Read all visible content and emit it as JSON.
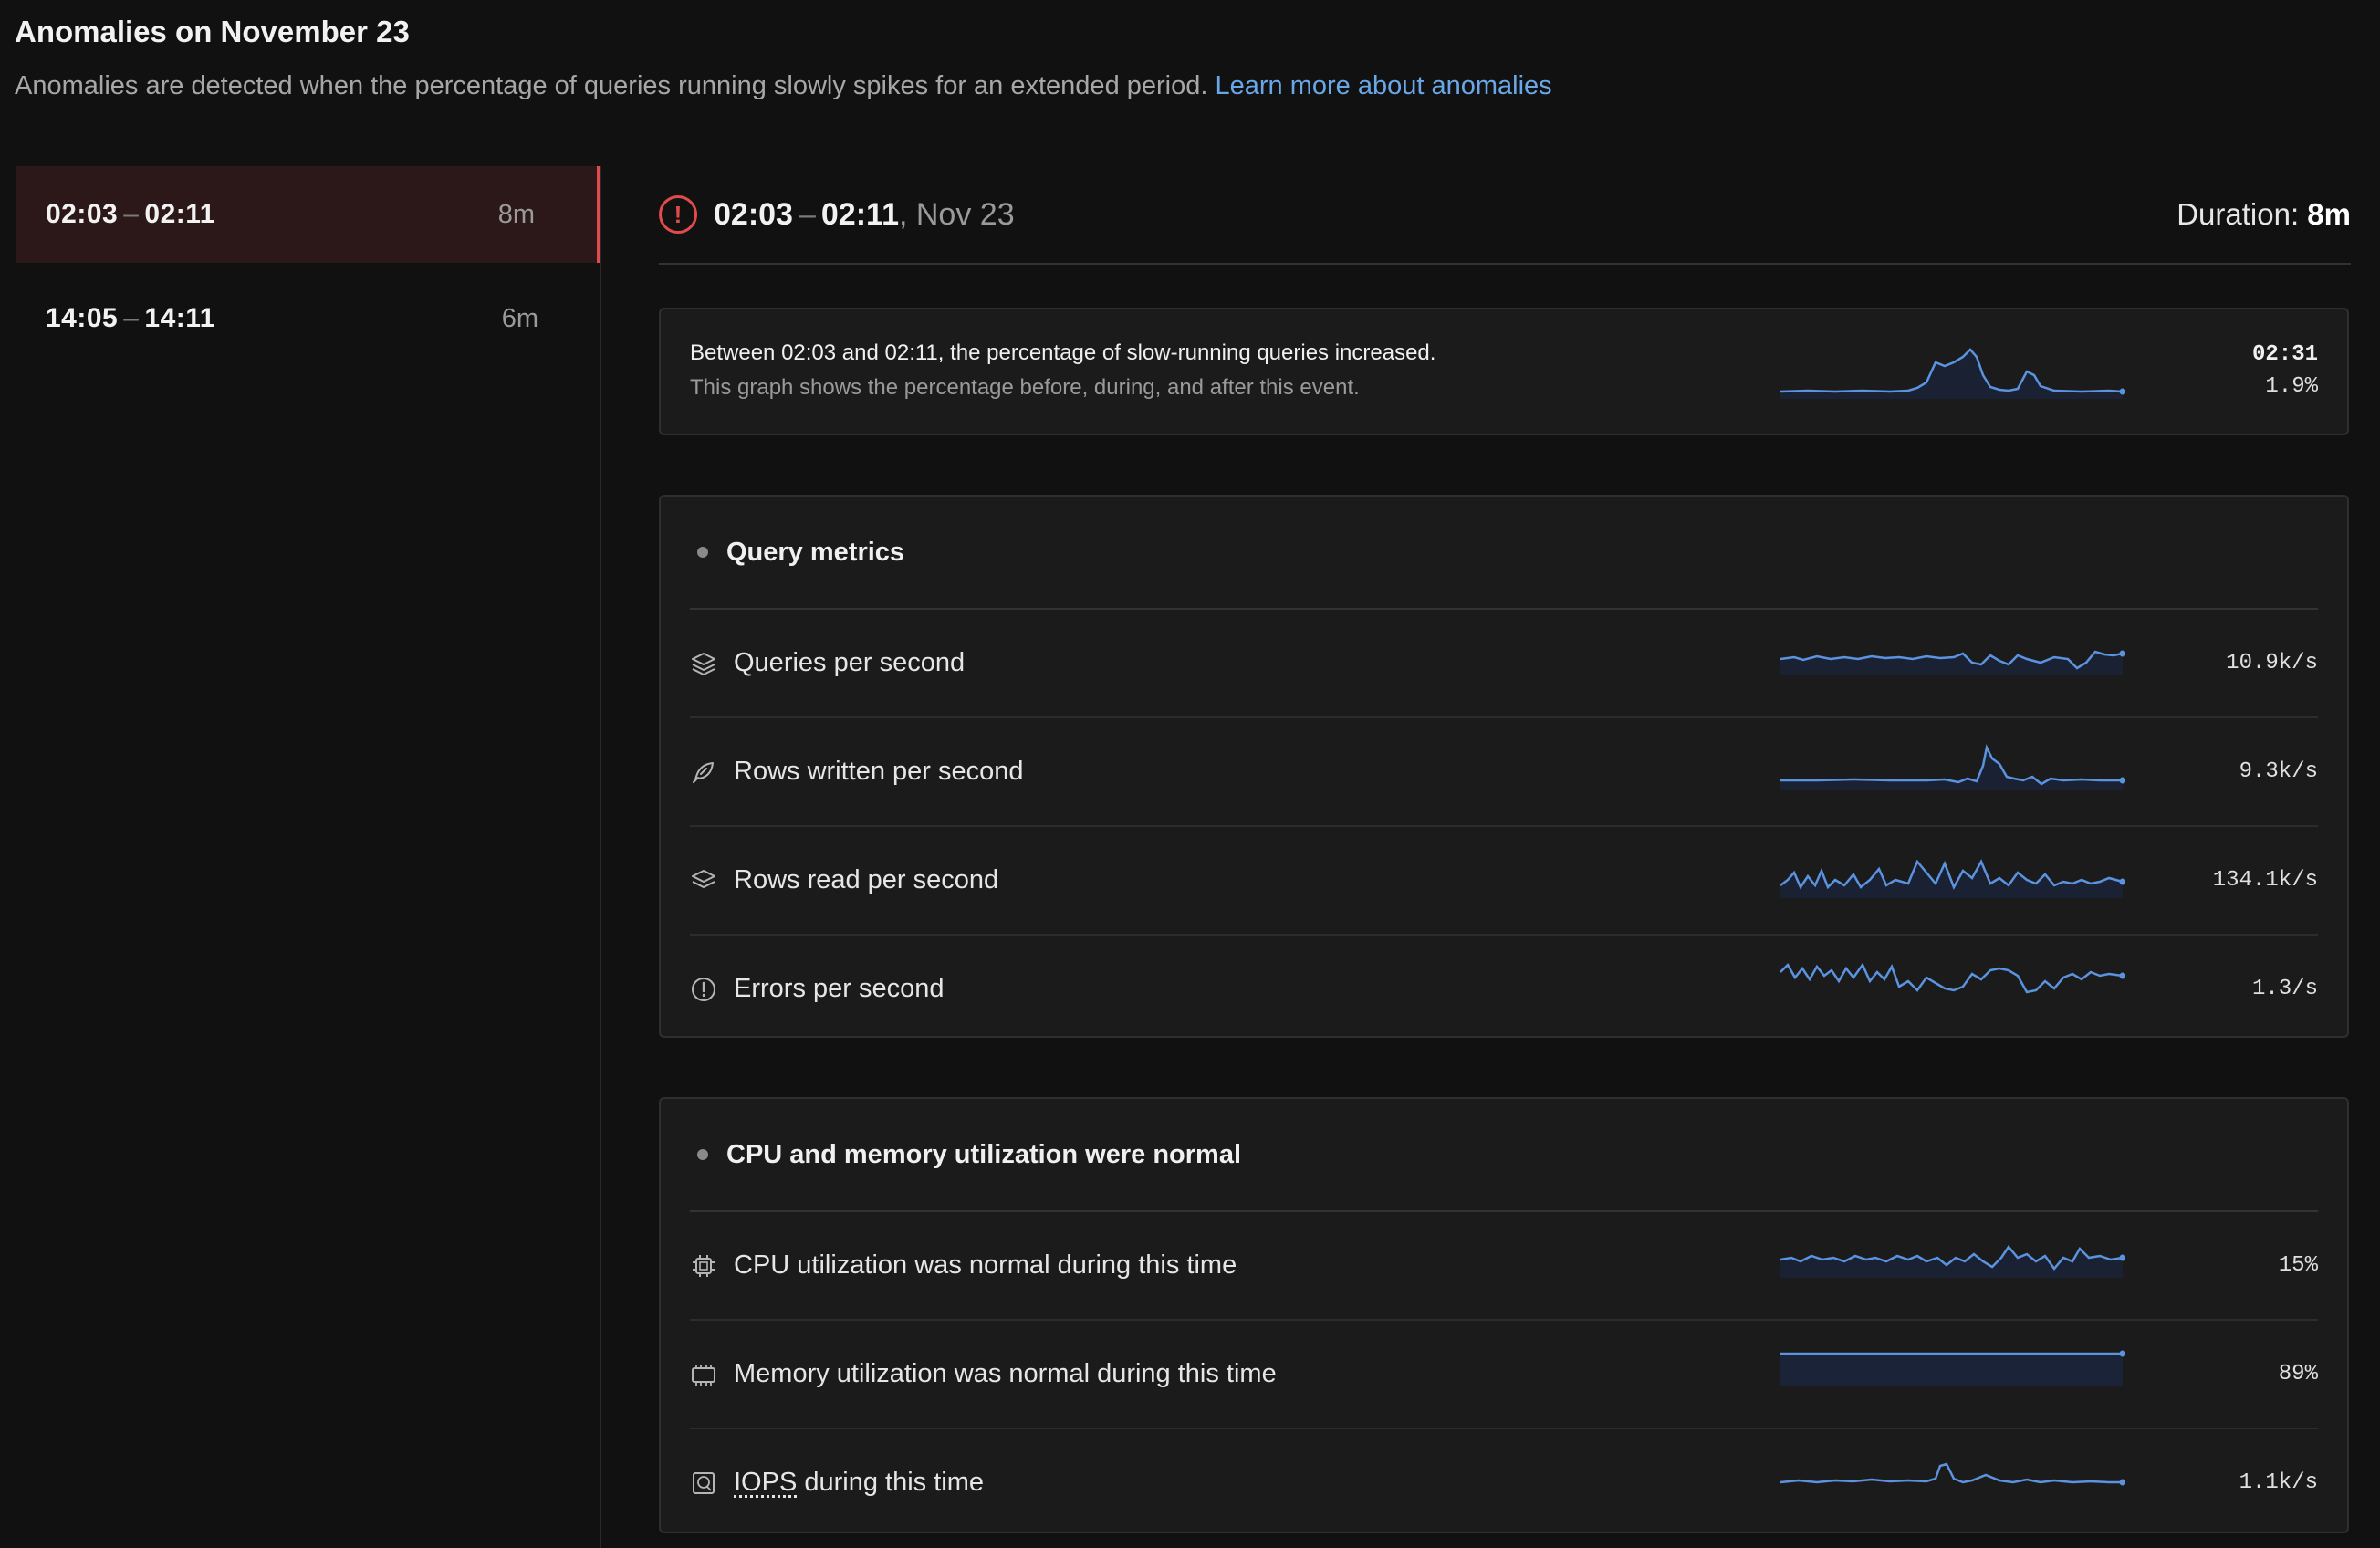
{
  "page": {
    "title": "Anomalies on November 23",
    "description": "Anomalies are detected when the percentage of queries running slowly spikes for an extended period.",
    "learn_more": "Learn more about anomalies"
  },
  "sidebar": {
    "items": [
      {
        "start": "02:03",
        "sep": "–",
        "end": "02:11",
        "duration": "8m",
        "active": true
      },
      {
        "start": "14:05",
        "sep": "–",
        "end": "14:11",
        "duration": "6m",
        "active": false
      }
    ]
  },
  "event": {
    "start": "02:03",
    "sep": "–",
    "end": "02:11",
    "date": ", Nov 23",
    "duration_label": "Duration:",
    "duration_value": "8m",
    "summary_title": "Between 02:03 and 02:11, the percentage of slow-running queries increased.",
    "summary_desc": "This graph shows the percentage before, during, and after this event.",
    "summary_time": "02:31",
    "summary_value": "1.9%"
  },
  "query_metrics": {
    "title": "Query metrics",
    "rows": [
      {
        "label": "Queries per second",
        "value": "10.9k/s",
        "icon": "layers-icon"
      },
      {
        "label": "Rows written per second",
        "value": "9.3k/s",
        "icon": "feather-icon"
      },
      {
        "label": "Rows read per second",
        "value": "134.1k/s",
        "icon": "layers-icon"
      },
      {
        "label": "Errors per second",
        "value": "1.3/s",
        "icon": "alert-circle-icon"
      }
    ]
  },
  "utilization": {
    "title": "CPU and memory utilization were normal",
    "rows": [
      {
        "label": "CPU utilization was normal during this time",
        "value": "15%",
        "icon": "cpu-icon"
      },
      {
        "label": "Memory utilization was normal during this time",
        "value": "89%",
        "icon": "memory-icon"
      },
      {
        "label_abbr": "IOPS",
        "label_rest": " during this time",
        "value": "1.1k/s",
        "icon": "disk-icon"
      }
    ]
  },
  "colors": {
    "accent": "#e24b4b",
    "link": "#6aa7e8",
    "spark_line": "#5b93e0",
    "spark_fill": "#1a2744"
  }
}
